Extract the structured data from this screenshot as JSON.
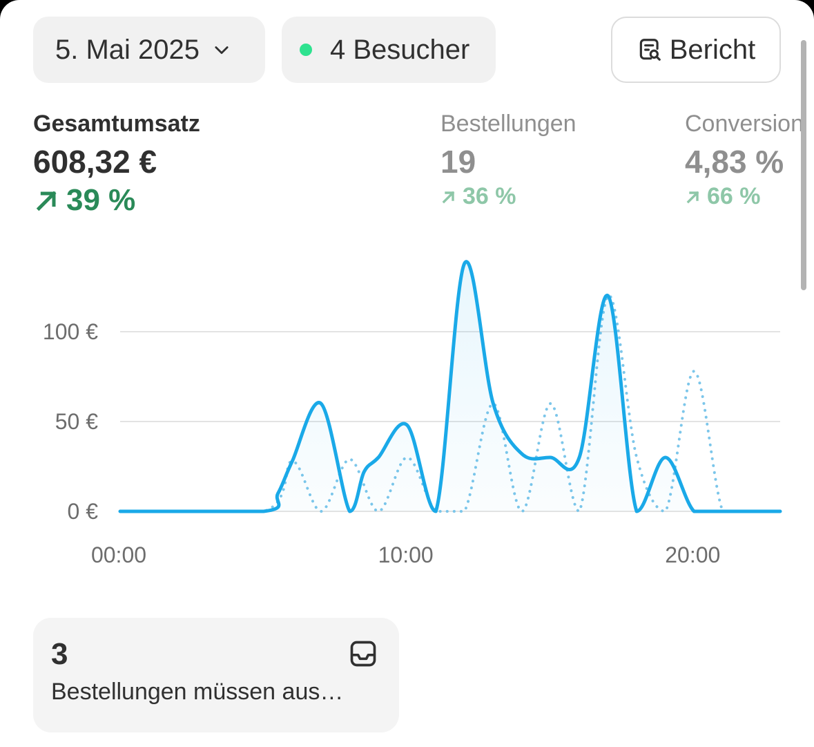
{
  "toolbar": {
    "date_label": "5. Mai 2025",
    "visitors_label": "4 Besucher",
    "report_label": "Bericht",
    "live_color": "#2ee28f"
  },
  "metrics": {
    "revenue": {
      "label": "Gesamtumsatz",
      "value": "608,32 €",
      "delta": "39 %"
    },
    "orders": {
      "label": "Bestellungen",
      "value": "19",
      "delta": "36 %"
    },
    "conversion": {
      "label": "Conversion",
      "value": "4,83 %",
      "delta": "66 %"
    }
  },
  "chart_data": {
    "type": "line",
    "y_tick_labels": [
      "100 €",
      "50 €",
      "0 €"
    ],
    "y_ticks": [
      100,
      50,
      0
    ],
    "x_tick_labels": [
      "00:00",
      "10:00",
      "20:00"
    ],
    "x_ticks": [
      0,
      10,
      20
    ],
    "xlim": [
      0,
      23
    ],
    "ylim": [
      0,
      100
    ],
    "grid": true,
    "series": [
      {
        "style": "solid",
        "color": "#1aa9e8",
        "x": [
          0,
          5,
          5.5,
          6,
          7,
          8,
          8.5,
          9,
          10,
          11,
          12,
          13,
          14,
          15,
          16,
          17,
          18,
          19,
          20,
          21,
          22,
          23
        ],
        "y": [
          0,
          0,
          10,
          28,
          60,
          0,
          22,
          30,
          48,
          0,
          138,
          60,
          32,
          30,
          30,
          120,
          0,
          30,
          0,
          0,
          0,
          0
        ]
      },
      {
        "style": "dotted",
        "color": "#7cc6ea",
        "x": [
          0,
          5,
          6,
          7,
          8,
          9,
          10,
          11,
          12,
          13,
          14,
          15,
          16,
          17,
          18,
          19,
          20,
          21,
          22,
          23
        ],
        "y": [
          0,
          0,
          28,
          0,
          29,
          0,
          30,
          0,
          0,
          60,
          0,
          60,
          0,
          120,
          30,
          0,
          78,
          0,
          0,
          0
        ]
      }
    ]
  },
  "alert": {
    "count": "3",
    "text": "Bestellungen müssen aus…"
  }
}
